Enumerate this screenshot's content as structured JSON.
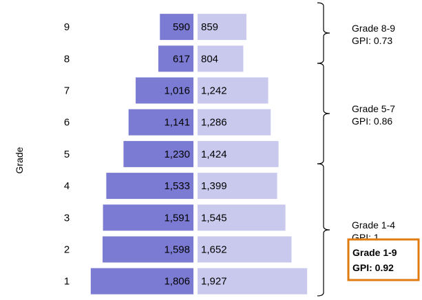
{
  "chart_data": {
    "type": "bar",
    "subtype": "population-pyramid",
    "ylabel": "Grade",
    "categories": [
      "9",
      "8",
      "7",
      "6",
      "5",
      "4",
      "3",
      "2",
      "1"
    ],
    "series": [
      {
        "values": [
          590,
          617,
          1016,
          1141,
          1230,
          1533,
          1591,
          1598,
          1806
        ],
        "labels": [
          "590",
          "617",
          "1,016",
          "1,141",
          "1,230",
          "1,533",
          "1,591",
          "1,598",
          "1,806"
        ],
        "color": "#7b7bd3"
      },
      {
        "values": [
          859,
          804,
          1242,
          1286,
          1424,
          1399,
          1545,
          1652,
          1927
        ],
        "labels": [
          "859",
          "804",
          "1,242",
          "1,286",
          "1,424",
          "1,399",
          "1,545",
          "1,652",
          "1,927"
        ],
        "color": "#c9c9ee"
      }
    ],
    "groups": [
      {
        "from": "9",
        "to": "8",
        "title": "Grade 8-9",
        "gpi_text": "GPI:  0.73"
      },
      {
        "from": "7",
        "to": "5",
        "title": "Grade 5-7",
        "gpi_text": "GPI:  0.86"
      },
      {
        "from": "4",
        "to": "1",
        "title": "Grade 1-4",
        "gpi_text": "GPI:  1"
      }
    ],
    "summary": {
      "title": "Grade 1-9",
      "gpi_text": "GPI:  0.92",
      "border_color": "#e07b10"
    },
    "grid": false,
    "legend": "none"
  }
}
